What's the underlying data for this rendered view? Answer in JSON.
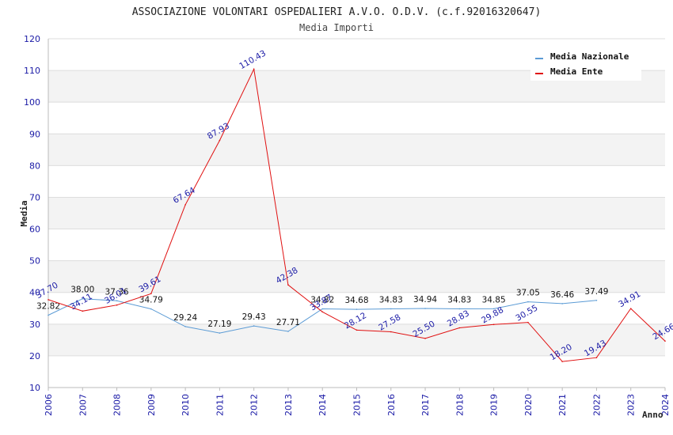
{
  "chart_data": {
    "type": "line",
    "title": "ASSOCIAZIONE VOLONTARI OSPEDALIERI A.V.O. O.D.V. (c.f.92016320647)",
    "subtitle": "Media Importi",
    "xlabel": "Anno",
    "ylabel": "Media",
    "ylim": [
      10,
      120
    ],
    "yticks": [
      10,
      20,
      30,
      40,
      50,
      60,
      70,
      80,
      90,
      100,
      110,
      120
    ],
    "categories": [
      "2006",
      "2007",
      "2008",
      "2009",
      "2010",
      "2011",
      "2012",
      "2013",
      "2014",
      "2015",
      "2016",
      "2017",
      "2018",
      "2019",
      "2020",
      "2021",
      "2022",
      "2023",
      "2024"
    ],
    "legend_position": "top-right",
    "series": [
      {
        "name": "Media Nazionale",
        "color": "#5b9bd5",
        "label_color": "#111111",
        "values": [
          32.82,
          38.0,
          37.36,
          34.79,
          29.24,
          27.19,
          29.43,
          27.71,
          34.82,
          34.68,
          34.83,
          34.94,
          34.83,
          34.85,
          37.05,
          36.46,
          37.49,
          null,
          null
        ],
        "labels": [
          "32.82",
          "38.00",
          "37.36",
          "34.79",
          "29.24",
          "27.19",
          "29.43",
          "27.71",
          "34.82",
          "34.68",
          "34.83",
          "34.94",
          "34.83",
          "34.85",
          "37.05",
          "36.46",
          "37.49",
          "",
          ""
        ]
      },
      {
        "name": "Media Ente",
        "color": "#e01010",
        "label_color": "#1a1aa6",
        "values": [
          37.7,
          34.11,
          36.01,
          39.61,
          67.64,
          87.93,
          110.43,
          42.38,
          33.87,
          28.12,
          27.58,
          25.5,
          28.83,
          29.88,
          30.55,
          18.2,
          19.43,
          34.91,
          24.66
        ],
        "labels": [
          "37.70",
          "34.11",
          "36.01",
          "39.61",
          "67.64",
          "87.93",
          "110.43",
          "42.38",
          "33.87",
          "28.12",
          "27.58",
          "25.50",
          "28.83",
          "29.88",
          "30.55",
          "18.20",
          "19.43",
          "34.91",
          "24.66"
        ]
      }
    ]
  }
}
